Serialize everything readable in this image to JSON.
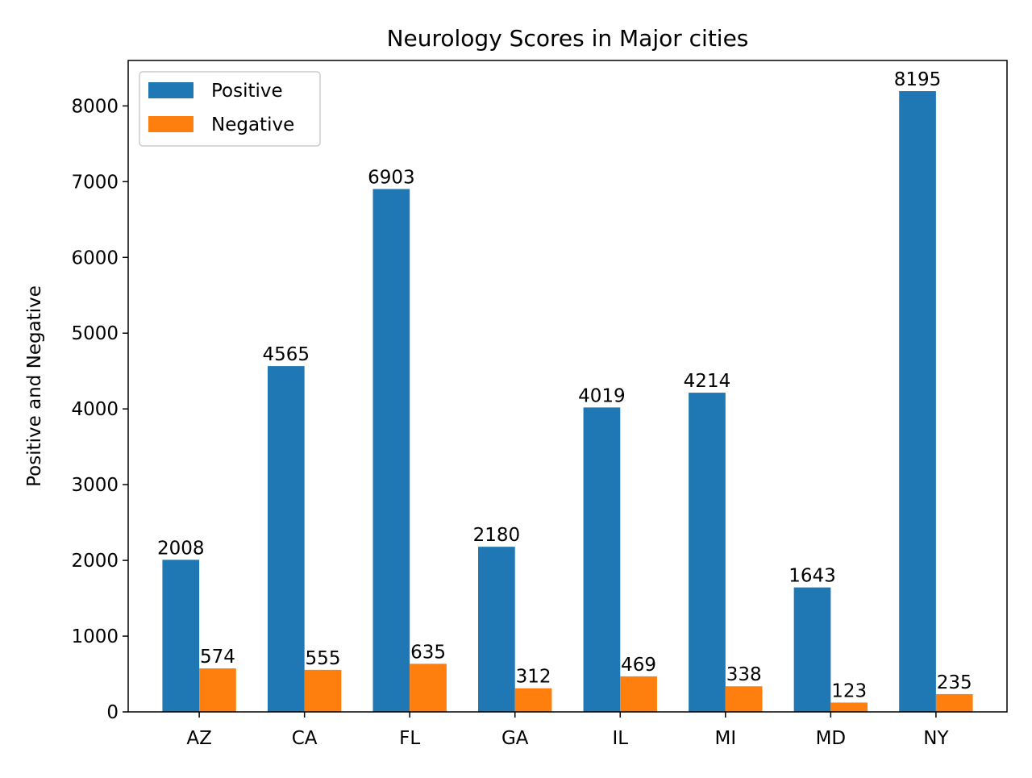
{
  "chart_data": {
    "type": "bar",
    "title": "Neurology Scores in Major cities",
    "xlabel": "",
    "ylabel": "Positive and Negative",
    "categories": [
      "AZ",
      "CA",
      "FL",
      "GA",
      "IL",
      "MI",
      "MD",
      "NY"
    ],
    "series": [
      {
        "name": "Positive",
        "color": "#1f77b4",
        "values": [
          2008,
          4565,
          6903,
          2180,
          4019,
          4214,
          1643,
          8195
        ]
      },
      {
        "name": "Negative",
        "color": "#ff7f0e",
        "values": [
          574,
          555,
          635,
          312,
          469,
          338,
          123,
          235
        ]
      }
    ],
    "ylim": [
      0,
      8600
    ],
    "yticks": [
      0,
      1000,
      2000,
      3000,
      4000,
      5000,
      6000,
      7000,
      8000
    ],
    "grid": false,
    "legend_position": "top-left"
  }
}
